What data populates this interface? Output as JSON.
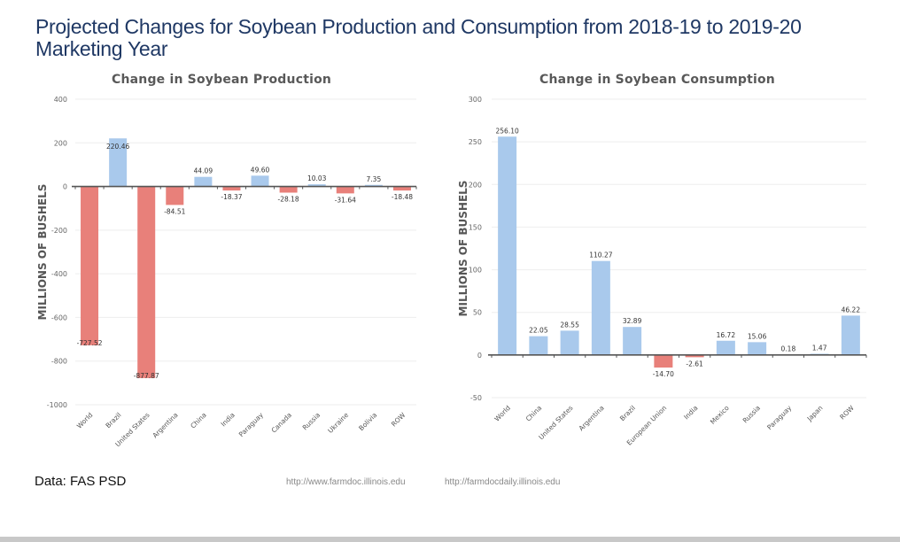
{
  "title": "Projected Changes for Soybean Production and Consumption from 2018-19 to 2019-20 Marketing Year",
  "colors": {
    "positive": "#a9c9ec",
    "negative": "#e8807a",
    "title": "#1f3864"
  },
  "chart_data": [
    {
      "type": "bar",
      "title": "Change in Soybean Production",
      "xlabel": "",
      "ylabel": "MILLIONS OF BUSHELS",
      "ylim": [
        -1000,
        400
      ],
      "yticks": [
        400,
        200,
        0,
        -200,
        -400,
        -600,
        -800,
        -1000
      ],
      "grid": true,
      "categories": [
        "World",
        "Brazil",
        "United States",
        "Argentina",
        "China",
        "India",
        "Paraguay",
        "Canada",
        "Russia",
        "Ukraine",
        "Bolivia",
        "ROW"
      ],
      "values": [
        -727.52,
        220.46,
        -877.87,
        -84.51,
        44.09,
        -18.37,
        49.6,
        -28.18,
        10.03,
        -31.64,
        7.35,
        -18.48
      ],
      "labels": [
        "-727.52",
        "220.46",
        "-877.87",
        "-84.51",
        "44.09",
        "-18.37",
        "49.60",
        "-28.18",
        "10.03",
        "-31.64",
        "7.35",
        "-18.48"
      ]
    },
    {
      "type": "bar",
      "title": "Change in Soybean Consumption",
      "xlabel": "",
      "ylabel": "MILLIONS OF BUSHELS",
      "ylim": [
        -50,
        300
      ],
      "yticks": [
        300,
        250,
        200,
        150,
        100,
        50,
        0,
        -50
      ],
      "grid": true,
      "categories": [
        "World",
        "China",
        "United States",
        "Argentina",
        "Brazil",
        "European Union",
        "India",
        "Mexico",
        "Russia",
        "Paraguay",
        "Japan",
        "ROW"
      ],
      "values": [
        256.1,
        22.05,
        28.55,
        110.27,
        32.89,
        -14.7,
        -2.61,
        16.72,
        15.06,
        0.18,
        1.47,
        46.22
      ],
      "labels": [
        "256.10",
        "22.05",
        "28.55",
        "110.27",
        "32.89",
        "-14.70",
        "-2.61",
        "16.72",
        "15.06",
        "0.18",
        "1.47",
        "46.22"
      ]
    }
  ],
  "footer": {
    "source": "Data: FAS PSD",
    "url1": "http://www.farmdoc.illinois.edu",
    "url2": "http://farmdocdaily.illinois.edu"
  }
}
